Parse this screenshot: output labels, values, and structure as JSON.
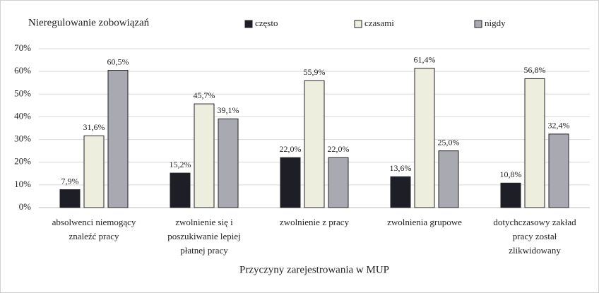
{
  "chart_data": {
    "type": "bar",
    "title": "Nieregulowanie zobowiązań",
    "x_label": "Przyczyny zarejestrowania w MUP",
    "categories": [
      "absolwenci niemogący znaleźć pracy",
      "zwolnienie się i poszukiwanie lepiej płatnej pracy",
      "zwolnienie z pracy",
      "zwolnienia grupowe",
      "dotychczasowy zakład pracy został zlikwidowany"
    ],
    "series": [
      {
        "name": "często",
        "color": "#1e1f26",
        "values": [
          7.9,
          15.2,
          22.0,
          13.6,
          10.8
        ],
        "value_labels": [
          "7,9%",
          "15,2%",
          "22,0%",
          "13,6%",
          "10,8%"
        ]
      },
      {
        "name": "czasami",
        "color": "#eeeedf",
        "values": [
          31.6,
          45.7,
          55.9,
          61.4,
          56.8
        ],
        "value_labels": [
          "31,6%",
          "45,7%",
          "55,9%",
          "61,4%",
          "56,8%"
        ]
      },
      {
        "name": "nigdy",
        "color": "#a9a9b1",
        "values": [
          60.5,
          39.1,
          22.0,
          25.0,
          32.4
        ],
        "value_labels": [
          "60,5%",
          "39,1%",
          "22,0%",
          "25,0%",
          "32,4%"
        ]
      }
    ],
    "ylim": [
      0,
      70
    ],
    "yticks": [
      {
        "value": 0,
        "label": "0%"
      },
      {
        "value": 10,
        "label": "10%"
      },
      {
        "value": 20,
        "label": "20%"
      },
      {
        "value": 30,
        "label": "30%"
      },
      {
        "value": 40,
        "label": "40%"
      },
      {
        "value": 50,
        "label": "50%"
      },
      {
        "value": 60,
        "label": "60%"
      },
      {
        "value": 70,
        "label": "70%"
      }
    ],
    "grid": true,
    "legend": "top"
  }
}
